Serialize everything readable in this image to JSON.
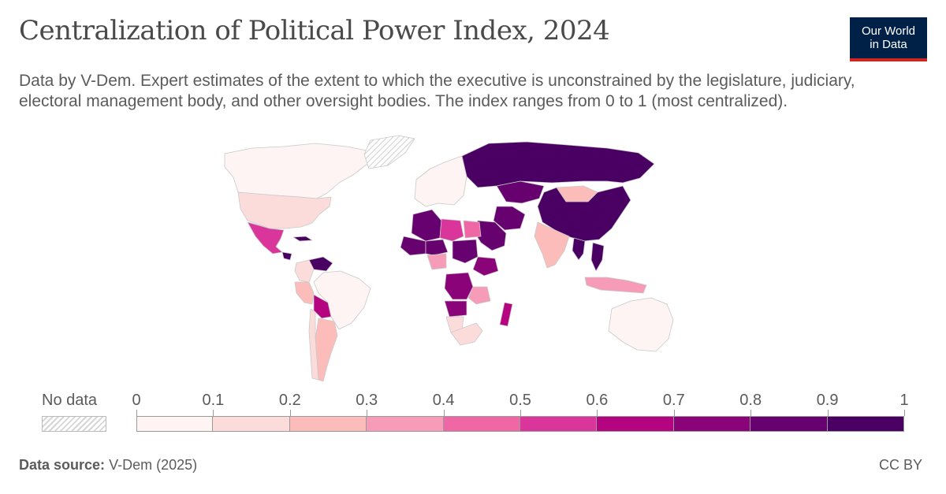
{
  "title": "Centralization of Political Power Index, 2024",
  "subtitle": "Data by V-Dem. Expert estimates of the extent to which the executive is unconstrained by the legislature, judiciary, electoral management body, and other oversight bodies. The index ranges from 0 to 1 (most centralized).",
  "logo": {
    "line1": "Our World",
    "line2": "in Data"
  },
  "legend": {
    "no_data_label": "No data",
    "ticks": [
      "0",
      "0.1",
      "0.2",
      "0.3",
      "0.4",
      "0.5",
      "0.6",
      "0.7",
      "0.8",
      "0.9",
      "1"
    ],
    "bins": [
      {
        "from": 0.0,
        "to": 0.1,
        "color": "#fdf4f3"
      },
      {
        "from": 0.1,
        "to": 0.2,
        "color": "#fcdcdb"
      },
      {
        "from": 0.2,
        "to": 0.3,
        "color": "#fbbcba"
      },
      {
        "from": 0.3,
        "to": 0.4,
        "color": "#f79cb8"
      },
      {
        "from": 0.4,
        "to": 0.5,
        "color": "#f067a6"
      },
      {
        "from": 0.5,
        "to": 0.6,
        "color": "#d9359b"
      },
      {
        "from": 0.6,
        "to": 0.7,
        "color": "#b4047f"
      },
      {
        "from": 0.7,
        "to": 0.8,
        "color": "#8b0378"
      },
      {
        "from": 0.8,
        "to": 0.9,
        "color": "#670170"
      },
      {
        "from": 0.9,
        "to": 1.0,
        "color": "#4a0062"
      }
    ]
  },
  "regions": [
    {
      "name": "Canada",
      "value": 0.05
    },
    {
      "name": "United States",
      "value": 0.1
    },
    {
      "name": "Mexico",
      "value": 0.55
    },
    {
      "name": "Cuba",
      "value": 0.95
    },
    {
      "name": "Nicaragua",
      "value": 0.95
    },
    {
      "name": "Venezuela",
      "value": 0.95
    },
    {
      "name": "Colombia",
      "value": 0.15
    },
    {
      "name": "Peru",
      "value": 0.25
    },
    {
      "name": "Brazil",
      "value": 0.05
    },
    {
      "name": "Bolivia",
      "value": 0.65
    },
    {
      "name": "Argentina",
      "value": 0.2
    },
    {
      "name": "Chile",
      "value": 0.1
    },
    {
      "name": "Greenland",
      "value": null
    },
    {
      "name": "Western Europe",
      "value": 0.05
    },
    {
      "name": "Russia",
      "value": 0.9
    },
    {
      "name": "Kazakhstan",
      "value": 0.85
    },
    {
      "name": "Mongolia",
      "value": 0.25
    },
    {
      "name": "China",
      "value": 0.95
    },
    {
      "name": "India",
      "value": 0.25
    },
    {
      "name": "Iran",
      "value": 0.85
    },
    {
      "name": "Saudi Arabia",
      "value": 0.85
    },
    {
      "name": "Algeria",
      "value": 0.85
    },
    {
      "name": "Libya",
      "value": 0.55
    },
    {
      "name": "Egypt",
      "value": 0.45
    },
    {
      "name": "Mali",
      "value": 0.85
    },
    {
      "name": "Niger",
      "value": 0.85
    },
    {
      "name": "Nigeria",
      "value": 0.35
    },
    {
      "name": "Sudan",
      "value": 0.85
    },
    {
      "name": "Ethiopia",
      "value": 0.75
    },
    {
      "name": "DR Congo",
      "value": 0.75
    },
    {
      "name": "Angola",
      "value": 0.75
    },
    {
      "name": "Tanzania",
      "value": 0.35
    },
    {
      "name": "Namibia",
      "value": 0.15
    },
    {
      "name": "South Africa",
      "value": 0.1
    },
    {
      "name": "Madagascar",
      "value": 0.65
    },
    {
      "name": "Australia",
      "value": 0.05
    },
    {
      "name": "Indonesia",
      "value": 0.35
    },
    {
      "name": "Vietnam",
      "value": 0.95
    },
    {
      "name": "Myanmar",
      "value": 0.95
    }
  ],
  "footer": {
    "source_label": "Data source:",
    "source_value": "V-Dem (2025)",
    "license": "CC BY"
  }
}
